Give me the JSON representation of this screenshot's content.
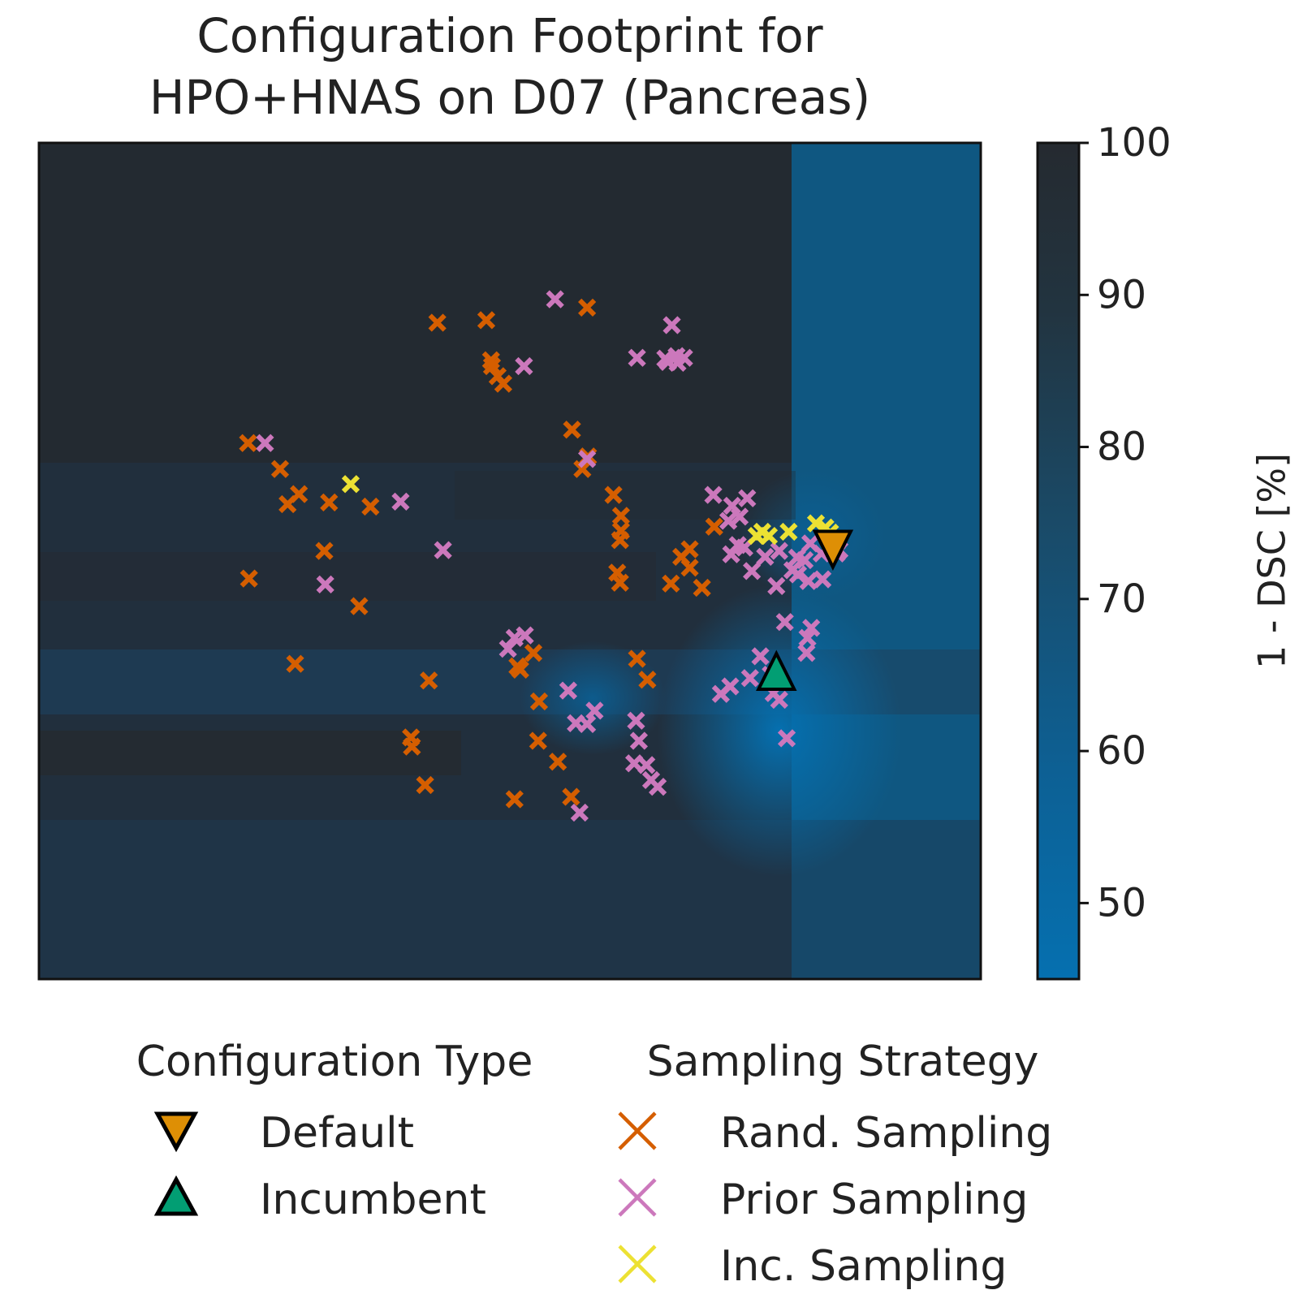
{
  "chart_data": {
    "type": "scatter",
    "title_lines": [
      "Configuration Footprint for",
      "HPO+HNAS on D07 (Pancreas)"
    ],
    "xlabel": "",
    "ylabel": "",
    "xlim": [
      0,
      100
    ],
    "ylim": [
      0,
      100
    ],
    "axis_ticks_shown": false,
    "grid": false,
    "colorbar": {
      "label": "1 - DSC [%]",
      "range": [
        45,
        100
      ],
      "ticks": [
        "50",
        "60",
        "70",
        "80",
        "90",
        "100"
      ],
      "tick_values": [
        50,
        60,
        70,
        80,
        90,
        100
      ],
      "color_low": "#0570b0",
      "color_high": "#252a30"
    },
    "background_surface": "performance landscape, lower 1 - DSC near the Default/Incumbent region",
    "legend": {
      "placement": "below",
      "groups": [
        {
          "title": "Configuration Type",
          "entries": [
            {
              "label": "Default",
              "marker": "triangle-down",
              "color": "#de8f05"
            },
            {
              "label": "Incumbent",
              "marker": "triangle-up",
              "color": "#029e73"
            }
          ]
        },
        {
          "title": "Sampling Strategy",
          "entries": [
            {
              "label": "Rand. Sampling",
              "marker": "x",
              "color": "#d55e00"
            },
            {
              "label": "Prior Sampling",
              "marker": "x",
              "color": "#cc78bc"
            },
            {
              "label": "Inc. Sampling",
              "marker": "x",
              "color": "#ece133"
            }
          ]
        }
      ]
    },
    "series": [
      {
        "name": "Rand. Sampling",
        "color": "#d55e00",
        "points": [
          [
            42.3,
            78.5
          ],
          [
            47.5,
            78.8
          ],
          [
            58.2,
            80.3
          ],
          [
            48.7,
            72.1
          ],
          [
            48.0,
            74.0
          ],
          [
            48.1,
            73.3
          ],
          [
            49.3,
            71.2
          ],
          [
            22.2,
            64.1
          ],
          [
            25.6,
            61.0
          ],
          [
            27.6,
            58.0
          ],
          [
            26.4,
            56.8
          ],
          [
            30.8,
            57.0
          ],
          [
            35.2,
            56.5
          ],
          [
            22.3,
            47.9
          ],
          [
            30.3,
            51.2
          ],
          [
            34.0,
            44.6
          ],
          [
            27.2,
            37.7
          ],
          [
            41.4,
            35.7
          ],
          [
            39.5,
            28.9
          ],
          [
            39.6,
            27.8
          ],
          [
            41.0,
            23.2
          ],
          [
            50.8,
            37.4
          ],
          [
            56.6,
            65.7
          ],
          [
            57.7,
            61.0
          ],
          [
            61.0,
            57.9
          ],
          [
            61.8,
            55.4
          ],
          [
            61.7,
            52.5
          ],
          [
            61.8,
            53.6
          ],
          [
            61.7,
            47.4
          ],
          [
            61.4,
            48.6
          ],
          [
            69.1,
            49.2
          ],
          [
            63.5,
            38.3
          ],
          [
            68.2,
            50.5
          ],
          [
            64.6,
            35.8
          ],
          [
            67.1,
            47.3
          ],
          [
            69.1,
            51.4
          ],
          [
            70.4,
            46.8
          ],
          [
            71.7,
            54.1
          ],
          [
            58.3,
            62.5
          ],
          [
            51.1,
            37.0
          ],
          [
            52.5,
            39.0
          ],
          [
            53.1,
            33.2
          ],
          [
            53.0,
            28.5
          ],
          [
            55.1,
            26.0
          ],
          [
            50.5,
            21.5
          ],
          [
            56.5,
            21.8
          ]
        ]
      },
      {
        "name": "Prior Sampling",
        "color": "#cc78bc",
        "points": [
          [
            24.0,
            64.1
          ],
          [
            54.8,
            81.3
          ],
          [
            67.2,
            78.2
          ],
          [
            63.5,
            74.3
          ],
          [
            66.5,
            74.2
          ],
          [
            67.7,
            74.5
          ],
          [
            68.5,
            74.3
          ],
          [
            66.8,
            73.8
          ],
          [
            67.8,
            73.7
          ],
          [
            51.5,
            73.3
          ],
          [
            58.2,
            62.2
          ],
          [
            38.4,
            57.1
          ],
          [
            42.9,
            51.3
          ],
          [
            30.4,
            47.2
          ],
          [
            51.6,
            41.1
          ],
          [
            49.8,
            39.5
          ],
          [
            50.5,
            40.8
          ],
          [
            56.2,
            34.5
          ],
          [
            57.0,
            30.6
          ],
          [
            58.2,
            30.5
          ],
          [
            59.0,
            32.1
          ],
          [
            63.4,
            30.9
          ],
          [
            63.7,
            28.5
          ],
          [
            64.5,
            25.6
          ],
          [
            65.0,
            23.8
          ],
          [
            65.7,
            23.0
          ],
          [
            63.2,
            25.8
          ],
          [
            57.4,
            19.9
          ],
          [
            75.2,
            57.5
          ],
          [
            73.6,
            56.6
          ],
          [
            74.4,
            55.3
          ],
          [
            73.2,
            54.8
          ],
          [
            71.6,
            57.9
          ],
          [
            74.9,
            51.6
          ],
          [
            74.2,
            51.9
          ],
          [
            73.5,
            50.8
          ],
          [
            75.7,
            48.8
          ],
          [
            77.1,
            50.5
          ],
          [
            78.3,
            47.0
          ],
          [
            78.6,
            51.2
          ],
          [
            80.5,
            50.4
          ],
          [
            81.3,
            50.1
          ],
          [
            83.1,
            50.9
          ],
          [
            84.7,
            50.9
          ],
          [
            85.0,
            51.3
          ],
          [
            81.9,
            52.1
          ],
          [
            80.0,
            48.9
          ],
          [
            80.6,
            48.4
          ],
          [
            81.7,
            47.6
          ],
          [
            83.2,
            47.8
          ],
          [
            79.2,
            42.7
          ],
          [
            81.6,
            40.8
          ],
          [
            82.0,
            42.0
          ],
          [
            81.5,
            39.0
          ],
          [
            77.7,
            36.4
          ],
          [
            76.6,
            38.6
          ],
          [
            73.4,
            35.0
          ],
          [
            78.6,
            33.4
          ],
          [
            79.4,
            28.8
          ],
          [
            78.0,
            34.2
          ],
          [
            75.5,
            36.0
          ],
          [
            72.4,
            34.1
          ]
        ]
      },
      {
        "name": "Inc. Sampling",
        "color": "#ece133",
        "points": [
          [
            33.1,
            59.2
          ],
          [
            76.2,
            53.0
          ],
          [
            76.8,
            53.5
          ],
          [
            77.5,
            53.0
          ],
          [
            79.6,
            53.5
          ],
          [
            82.5,
            54.5
          ],
          [
            83.5,
            54.0
          ],
          [
            84.0,
            53.4
          ]
        ]
      }
    ],
    "markers": [
      {
        "name": "Default",
        "x": 84.3,
        "y": 51.6,
        "shape": "triangle-down",
        "color": "#de8f05"
      },
      {
        "name": "Incumbent",
        "x": 78.3,
        "y": 36.6,
        "shape": "triangle-up",
        "color": "#029e73"
      }
    ]
  }
}
